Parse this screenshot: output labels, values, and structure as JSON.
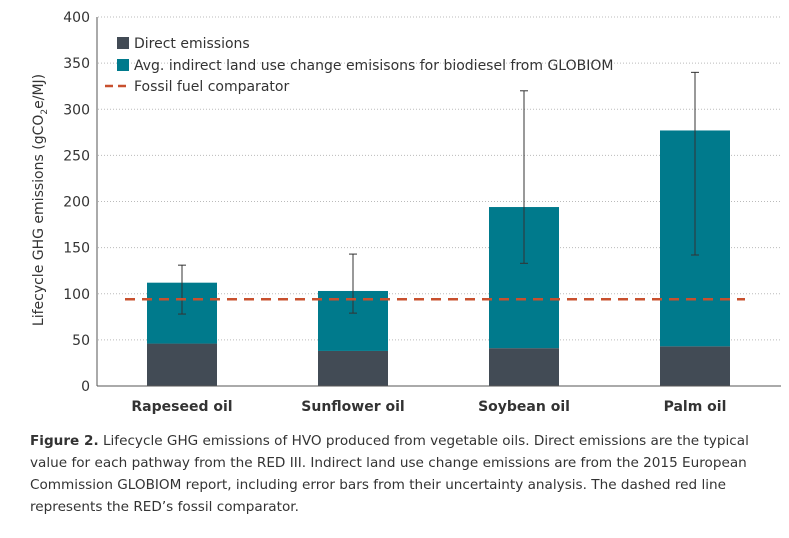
{
  "chart_data": {
    "type": "bar",
    "stacked": true,
    "title": "",
    "ylabel": "Lifecycle GHG emissions (gCO2e/MJ)",
    "ylabel_parts": {
      "pre": "Lifecycle GHG emissions (gCO",
      "sub": "2",
      "post": "e/MJ)"
    },
    "xlabel": "",
    "ylim": [
      0,
      400
    ],
    "yticks": [
      0,
      50,
      100,
      150,
      200,
      250,
      300,
      350,
      400
    ],
    "grid": true,
    "legend_placement": "top-left",
    "categories": [
      "Rapeseed oil",
      "Sunflower oil",
      "Soybean oil",
      "Palm oil"
    ],
    "series": [
      {
        "name": "Direct emissions",
        "color": "#424b55",
        "values": [
          46,
          38,
          41,
          43
        ]
      },
      {
        "name": "Avg. indirect land use change emisisons for biodiesel from GLOBIOM",
        "color": "#007a8c",
        "values": [
          66,
          65,
          153,
          234
        ]
      }
    ],
    "totals": [
      112,
      103,
      194,
      277
    ],
    "error_bars": [
      [
        78,
        131
      ],
      [
        79,
        143
      ],
      [
        133,
        320
      ],
      [
        142,
        340
      ]
    ],
    "reference_line": {
      "name": "Fossil fuel comparator",
      "value": 94,
      "color": "#c8502e",
      "style": "dashed"
    }
  },
  "caption": {
    "label": "Figure 2.",
    "text": " Lifecycle GHG emissions of HVO produced from vegetable oils. Direct emissions are the typical value for each pathway from the RED III. Indirect land use change emissions are from the 2015 European Commission GLOBIOM report, including error bars from their uncertainty analysis. The dashed red line represents the RED’s fossil comparator."
  }
}
